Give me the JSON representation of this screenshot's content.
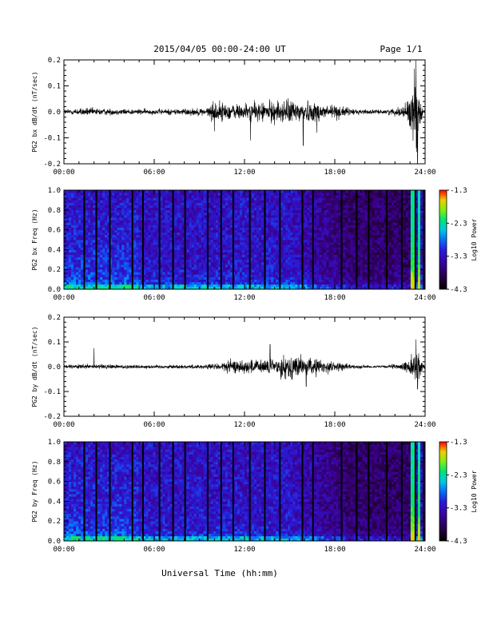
{
  "header": {
    "title": "2015/04/05  00:00-24:00 UT",
    "page": "Page 1/1"
  },
  "footer": {
    "xlabel": "Universal Time (hh:mm)"
  },
  "chart_data": [
    {
      "type": "line",
      "ylabel": "PG2 bx dB/dt (nT/sec)",
      "xlim": [
        0,
        24
      ],
      "ylim": [
        -0.2,
        0.2
      ],
      "x_ticks": [
        "00:00",
        "06:00",
        "12:00",
        "18:00",
        "24:00"
      ],
      "y_ticks": [
        "-0.2",
        "-0.1",
        "0.0",
        "0.1",
        "0.2"
      ],
      "amplitude_profile": [
        [
          0,
          0.012
        ],
        [
          1.5,
          0.018
        ],
        [
          3,
          0.014
        ],
        [
          6,
          0.012
        ],
        [
          9.5,
          0.018
        ],
        [
          10,
          0.05
        ],
        [
          11,
          0.035
        ],
        [
          12.5,
          0.04
        ],
        [
          14,
          0.05
        ],
        [
          15.5,
          0.055
        ],
        [
          16.5,
          0.045
        ],
        [
          18,
          0.035
        ],
        [
          19,
          0.015
        ],
        [
          21,
          0.008
        ],
        [
          22.5,
          0.02
        ],
        [
          23.2,
          0.12
        ],
        [
          23.4,
          0.2
        ],
        [
          23.6,
          0.06
        ],
        [
          24,
          0.01
        ]
      ],
      "spikes": [
        [
          10,
          -0.075
        ],
        [
          12.4,
          -0.11
        ],
        [
          15.9,
          -0.13
        ],
        [
          16.8,
          -0.08
        ],
        [
          23.4,
          0.2
        ],
        [
          23.5,
          -0.2
        ]
      ]
    },
    {
      "type": "heatmap",
      "ylabel": "PG2 bx Freq (Hz)",
      "xlim": [
        0,
        24
      ],
      "ylim": [
        0.0,
        1.0
      ],
      "x_ticks": [
        "00:00",
        "06:00",
        "12:00",
        "18:00",
        "24:00"
      ],
      "y_ticks": [
        "0.0",
        "0.2",
        "0.4",
        "0.6",
        "0.8",
        "1.0"
      ],
      "colorbar": {
        "label": "Log10 Power",
        "ticks": [
          "-1.3",
          "-2.3",
          "-3.3",
          "-4.3"
        ],
        "range": [
          -4.3,
          -1.3
        ]
      },
      "gap_times": [
        1.3,
        2.1,
        3.0,
        4.5,
        5.2,
        6.3,
        7.2,
        8.0,
        9.5,
        10.4,
        11.2,
        12.3,
        13.3,
        14.3,
        15.8,
        16.5,
        18.4,
        19.4,
        20.2,
        21.4,
        22.4,
        23.3
      ],
      "bright_bands": [
        [
          23.1,
          23.4
        ],
        [
          23.55,
          23.75
        ]
      ]
    },
    {
      "type": "line",
      "ylabel": "PG2 by dB/dt (nT/sec)",
      "xlim": [
        0,
        24
      ],
      "ylim": [
        -0.2,
        0.2
      ],
      "x_ticks": [
        "00:00",
        "06:00",
        "12:00",
        "18:00",
        "24:00"
      ],
      "y_ticks": [
        "-0.2",
        "-0.1",
        "0.0",
        "0.1",
        "0.2"
      ],
      "amplitude_profile": [
        [
          0,
          0.008
        ],
        [
          2,
          0.012
        ],
        [
          6,
          0.008
        ],
        [
          9,
          0.01
        ],
        [
          10,
          0.015
        ],
        [
          11,
          0.03
        ],
        [
          13,
          0.035
        ],
        [
          14,
          0.04
        ],
        [
          15,
          0.06
        ],
        [
          16,
          0.045
        ],
        [
          17,
          0.035
        ],
        [
          18,
          0.025
        ],
        [
          19,
          0.01
        ],
        [
          21,
          0.005
        ],
        [
          22.5,
          0.015
        ],
        [
          23.2,
          0.05
        ],
        [
          23.5,
          0.08
        ],
        [
          24,
          0.008
        ]
      ],
      "spikes": [
        [
          2.0,
          0.075
        ],
        [
          13.7,
          0.09
        ],
        [
          16.1,
          -0.08
        ],
        [
          23.4,
          0.11
        ],
        [
          23.5,
          -0.09
        ]
      ]
    },
    {
      "type": "heatmap",
      "ylabel": "PG2 by Freq (Hz)",
      "xlim": [
        0,
        24
      ],
      "ylim": [
        0.0,
        1.0
      ],
      "x_ticks": [
        "00:00",
        "06:00",
        "12:00",
        "18:00",
        "24:00"
      ],
      "y_ticks": [
        "0.0",
        "0.2",
        "0.4",
        "0.6",
        "0.8",
        "1.0"
      ],
      "colorbar": {
        "label": "Log10 Power",
        "ticks": [
          "-1.3",
          "-2.3",
          "-3.3",
          "-4.3"
        ],
        "range": [
          -4.3,
          -1.3
        ]
      },
      "gap_times": [
        1.3,
        2.1,
        3.0,
        4.5,
        5.2,
        6.3,
        7.2,
        8.0,
        9.5,
        10.4,
        11.2,
        12.3,
        13.3,
        14.3,
        15.8,
        16.5,
        18.4,
        19.4,
        20.2,
        21.4,
        22.4,
        23.3
      ],
      "bright_bands": [
        [
          23.1,
          23.4
        ],
        [
          23.55,
          23.75
        ]
      ]
    }
  ]
}
